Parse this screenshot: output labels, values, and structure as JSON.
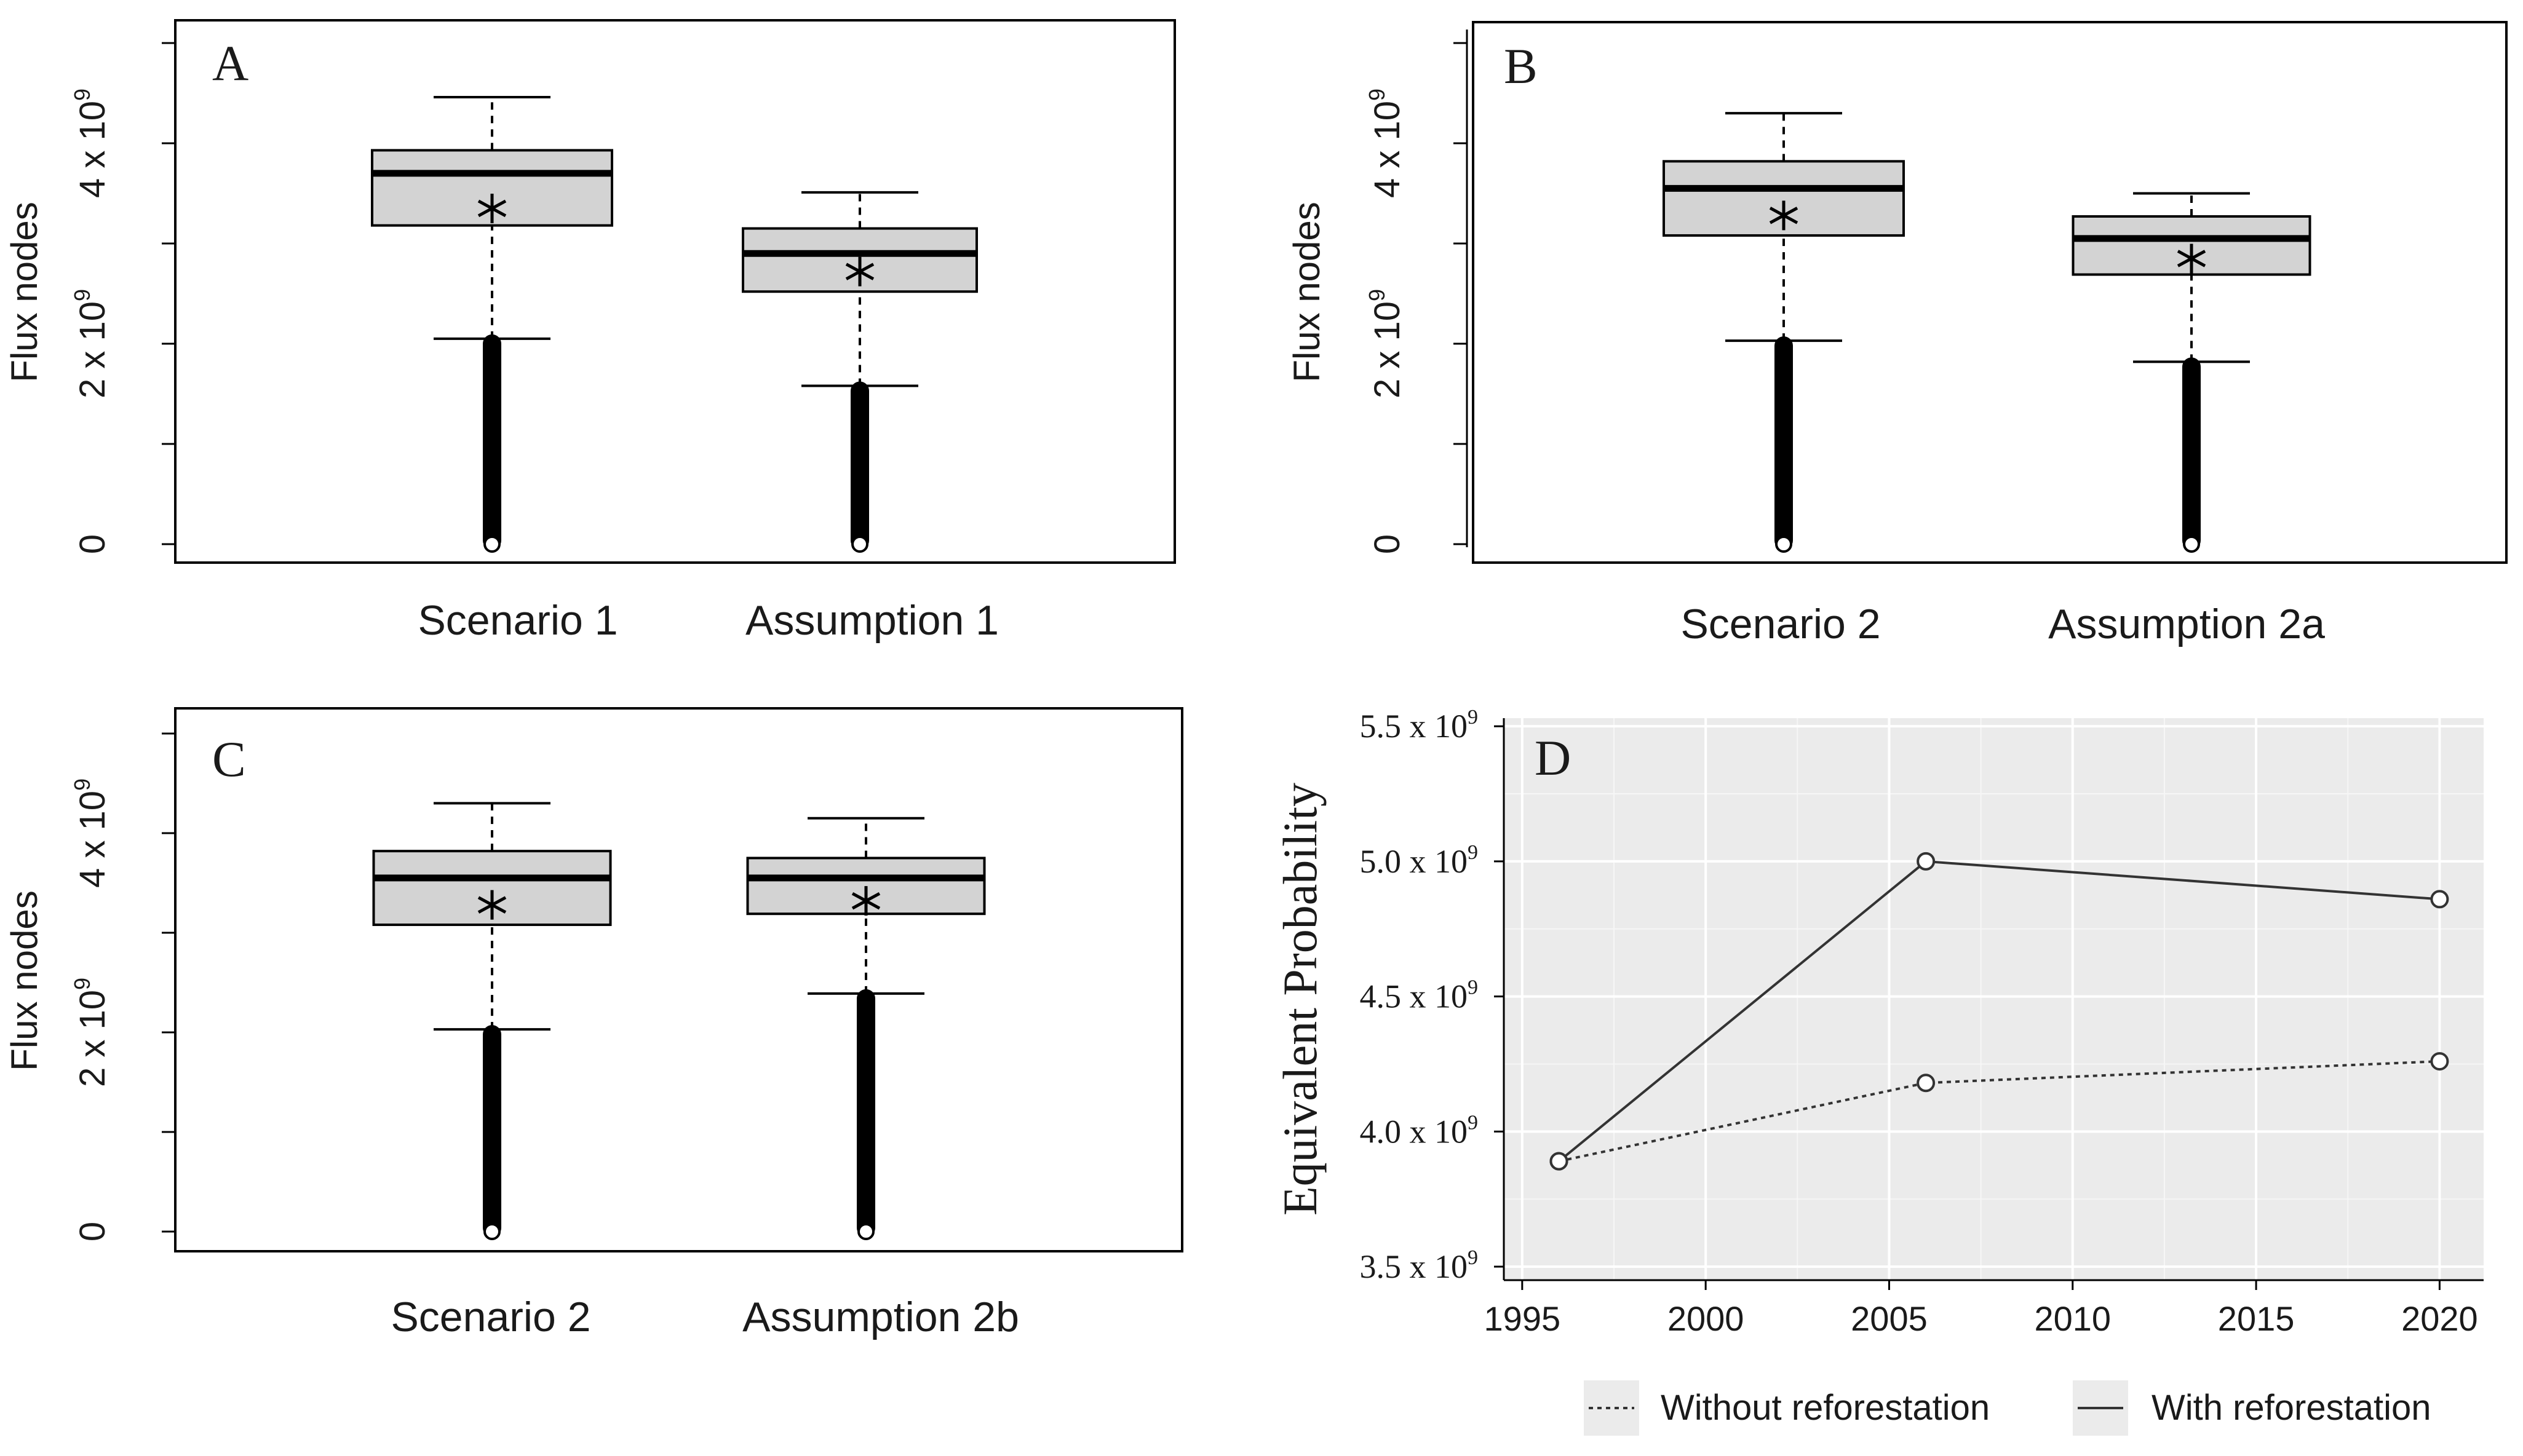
{
  "chart_data": [
    {
      "panel": "A",
      "type": "box",
      "ylabel": "Flux nodes",
      "ylim": [
        0,
        5000000000
      ],
      "yticks": [
        {
          "v": 0,
          "label": "0"
        },
        {
          "v": 1000000000,
          "label": ""
        },
        {
          "v": 2000000000,
          "label": "2 x 10",
          "exp": "9"
        },
        {
          "v": 3000000000,
          "label": ""
        },
        {
          "v": 4000000000,
          "label": "4 x 10",
          "exp": "9"
        },
        {
          "v": 5000000000,
          "label": ""
        }
      ],
      "boxes": [
        {
          "label": "Scenario 1",
          "min": 0,
          "lower_whisker": 2050000000,
          "q1": 3180000000,
          "median": 3700000000,
          "mean": 3350000000,
          "q3": 3930000000,
          "upper_whisker": 4460000000
        },
        {
          "label": "Assumption 1",
          "min": 0,
          "lower_whisker": 1580000000,
          "q1": 2520000000,
          "median": 2900000000,
          "mean": 2720000000,
          "q3": 3150000000,
          "upper_whisker": 3510000000
        }
      ]
    },
    {
      "panel": "B",
      "type": "box",
      "ylabel": "Flux nodes",
      "ylim": [
        0,
        5000000000
      ],
      "yticks": [
        {
          "v": 0,
          "label": "0"
        },
        {
          "v": 1000000000,
          "label": ""
        },
        {
          "v": 2000000000,
          "label": "2 x 10",
          "exp": "9"
        },
        {
          "v": 3000000000,
          "label": ""
        },
        {
          "v": 4000000000,
          "label": "4 x 10",
          "exp": "9"
        },
        {
          "v": 5000000000,
          "label": ""
        }
      ],
      "boxes": [
        {
          "label": "Scenario 2",
          "min": 0,
          "lower_whisker": 2030000000,
          "q1": 3080000000,
          "median": 3550000000,
          "mean": 3280000000,
          "q3": 3820000000,
          "upper_whisker": 4300000000
        },
        {
          "label": "Assumption 2a",
          "min": 0,
          "lower_whisker": 1820000000,
          "q1": 2690000000,
          "median": 3050000000,
          "mean": 2850000000,
          "q3": 3270000000,
          "upper_whisker": 3500000000
        }
      ]
    },
    {
      "panel": "C",
      "type": "box",
      "ylabel": "Flux nodes",
      "ylim": [
        0,
        5000000000
      ],
      "yticks": [
        {
          "v": 0,
          "label": "0"
        },
        {
          "v": 1000000000,
          "label": ""
        },
        {
          "v": 2000000000,
          "label": "2 x 10",
          "exp": "9"
        },
        {
          "v": 3000000000,
          "label": ""
        },
        {
          "v": 4000000000,
          "label": "4 x 10",
          "exp": "9"
        },
        {
          "v": 5000000000,
          "label": ""
        }
      ],
      "boxes": [
        {
          "label": "Scenario 2",
          "min": 0,
          "lower_whisker": 2030000000,
          "q1": 3080000000,
          "median": 3550000000,
          "mean": 3280000000,
          "q3": 3820000000,
          "upper_whisker": 4300000000
        },
        {
          "label": "Assumption 2b",
          "min": 0,
          "lower_whisker": 2390000000,
          "q1": 3190000000,
          "median": 3550000000,
          "mean": 3320000000,
          "q3": 3750000000,
          "upper_whisker": 4150000000
        }
      ]
    },
    {
      "panel": "D",
      "type": "line",
      "ylabel": "Equivalent Probability",
      "xlim": [
        1994.5,
        2021.2
      ],
      "ylim": [
        3450000000,
        5530000000
      ],
      "xticks": [
        "1995",
        "2000",
        "2005",
        "2010",
        "2015",
        "2020"
      ],
      "yticks": [
        {
          "v": 3500000000,
          "label": "3.5 x 10",
          "exp": "9"
        },
        {
          "v": 4000000000,
          "label": "4.0 x 10",
          "exp": "9"
        },
        {
          "v": 4500000000,
          "label": "4.5 x 10",
          "exp": "9"
        },
        {
          "v": 5000000000,
          "label": "5.0 x 10",
          "exp": "9"
        },
        {
          "v": 5500000000,
          "label": "5.5 x 10",
          "exp": "9"
        }
      ],
      "series": [
        {
          "name": "Without reforestation",
          "style": "dotted",
          "x": [
            1996,
            2006,
            2020
          ],
          "y": [
            3890000000,
            4180000000,
            4260000000
          ]
        },
        {
          "name": "With reforestation",
          "style": "solid",
          "x": [
            1996,
            2006,
            2020
          ],
          "y": [
            3890000000,
            5000000000,
            4860000000
          ]
        }
      ],
      "legend": "bottom"
    }
  ]
}
